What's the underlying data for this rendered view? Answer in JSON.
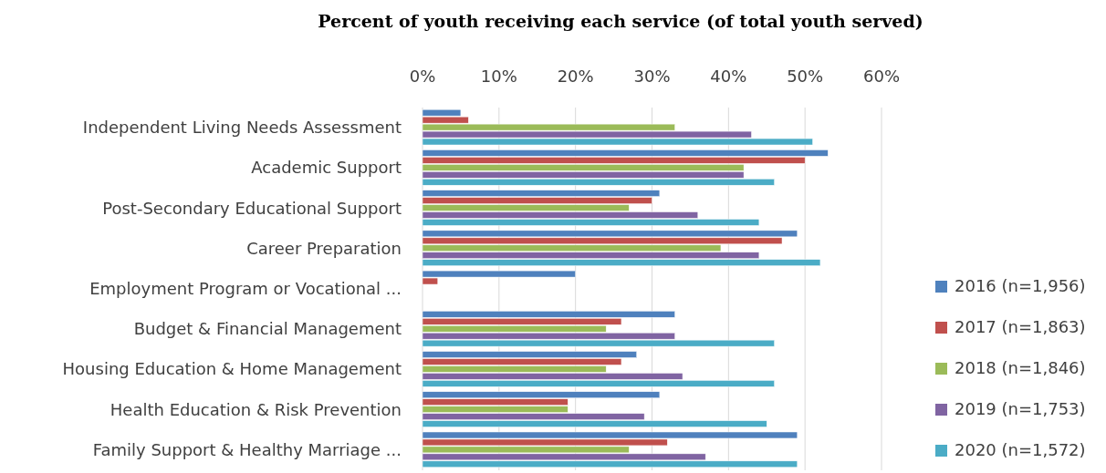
{
  "chart_data": {
    "type": "bar",
    "orientation": "horizontal",
    "title": "Percent of youth receiving each service (of total youth served)",
    "categories": [
      "Independent Living Needs Assessment",
      "Academic Support",
      "Post-Secondary Educational Support",
      "Career Preparation",
      "Employment Program or Vocational ...",
      "Budget & Financial Management",
      "Housing Education & Home Management",
      "Health Education & Risk Prevention",
      "Family Support & Healthy Marriage ..."
    ],
    "series": [
      {
        "name": "2016 (n=1,956)",
        "color": "#4f81bd",
        "values": [
          5,
          53,
          31,
          49,
          20,
          33,
          28,
          31,
          49
        ]
      },
      {
        "name": "2017 (n=1,863)",
        "color": "#c0504d",
        "values": [
          6,
          50,
          30,
          47,
          2,
          26,
          26,
          19,
          32
        ]
      },
      {
        "name": "2018 (n=1,846)",
        "color": "#9bbb59",
        "values": [
          33,
          42,
          27,
          39,
          null,
          24,
          24,
          19,
          27
        ]
      },
      {
        "name": "2019 (n=1,753)",
        "color": "#8064a2",
        "values": [
          43,
          42,
          36,
          44,
          null,
          33,
          34,
          29,
          37
        ]
      },
      {
        "name": "2020 (n=1,572)",
        "color": "#4bacc6",
        "values": [
          51,
          46,
          44,
          52,
          null,
          46,
          46,
          45,
          49
        ]
      }
    ],
    "xlim": [
      0,
      60
    ],
    "xticks": [
      {
        "value": 0,
        "label": "0%"
      },
      {
        "value": 10,
        "label": "10%"
      },
      {
        "value": 20,
        "label": "20%"
      },
      {
        "value": 30,
        "label": "30%"
      },
      {
        "value": 40,
        "label": "40%"
      },
      {
        "value": 50,
        "label": "50%"
      },
      {
        "value": 60,
        "label": "60%"
      }
    ],
    "grid": "x",
    "legend": "right"
  }
}
